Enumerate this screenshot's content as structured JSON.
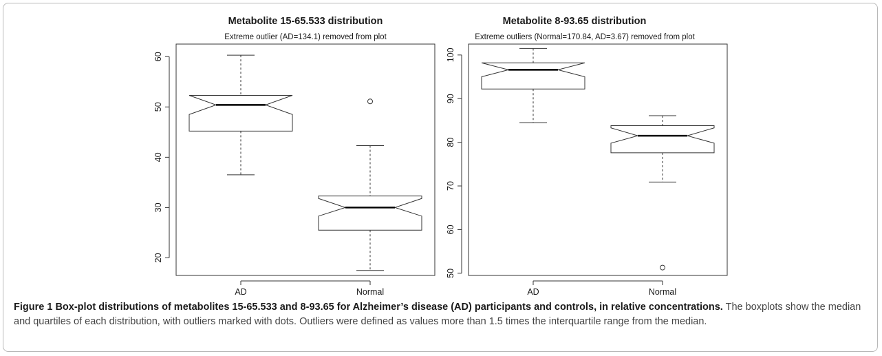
{
  "chart_data": [
    {
      "type": "boxplot",
      "title": "Metabolite 15-65.533 distribution",
      "subtitle": "Extreme outlier (AD=134.1) removed from plot",
      "categories": [
        "AD",
        "Normal"
      ],
      "ylim": [
        16.5,
        62.5
      ],
      "yticks": [
        20,
        30,
        40,
        50,
        60
      ],
      "boxes": [
        {
          "label": "AD",
          "whisker_low": 36.5,
          "q1": 45.2,
          "median": 50.4,
          "q3": 52.3,
          "whisker_high": 60.3,
          "notch_low": 48.5,
          "notch_high": 52.3,
          "outliers": []
        },
        {
          "label": "Normal",
          "whisker_low": 17.5,
          "q1": 25.5,
          "median": 30.0,
          "q3": 32.3,
          "whisker_high": 42.3,
          "notch_low": 28.3,
          "notch_high": 31.8,
          "outliers": [
            51.1
          ]
        }
      ]
    },
    {
      "type": "boxplot",
      "title": "Metabolite 8-93.65 distribution",
      "subtitle": "Extreme outliers (Normal=170.84, AD=3.67) removed from plot",
      "categories": [
        "AD",
        "Normal"
      ],
      "ylim": [
        49.5,
        102.5
      ],
      "yticks": [
        50,
        60,
        70,
        80,
        90,
        100
      ],
      "boxes": [
        {
          "label": "AD",
          "whisker_low": 84.5,
          "q1": 92.2,
          "median": 96.6,
          "q3": 98.2,
          "whisker_high": 101.5,
          "notch_low": 95.0,
          "notch_high": 98.2,
          "outliers": []
        },
        {
          "label": "Normal",
          "whisker_low": 70.9,
          "q1": 77.6,
          "median": 81.5,
          "q3": 83.8,
          "whisker_high": 86.1,
          "notch_low": 79.8,
          "notch_high": 83.3,
          "outliers": [
            51.3
          ]
        }
      ]
    }
  ],
  "caption": {
    "figure_label": "Figure 1",
    "title": "Box-plot distributions of metabolites 15-65.533 and 8-93.65 for Alzheimer’s disease (AD) participants and controls, in relative concentrations.",
    "text": "The boxplots show the median and quartiles of each distribution, with outliers marked with dots. Outliers were defined as values more than 1.5 times the interquartile range from the median."
  }
}
